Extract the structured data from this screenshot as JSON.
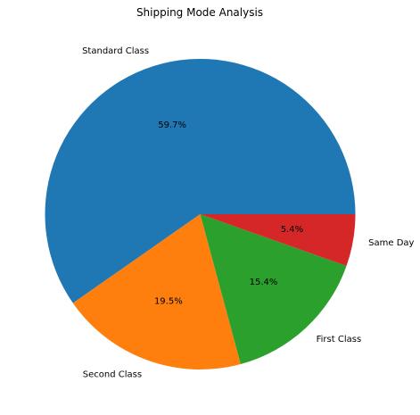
{
  "chart_data": {
    "type": "pie",
    "title": "Shipping Mode Analysis",
    "categories": [
      "Standard Class",
      "Second Class",
      "First Class",
      "Same Day"
    ],
    "values": [
      59.7,
      19.5,
      15.4,
      5.4
    ],
    "percent_labels": [
      "59.7%",
      "19.5%",
      "15.4%",
      "5.4%"
    ],
    "colors": [
      "#1f77b4",
      "#ff7f0e",
      "#2ca02c",
      "#d62728"
    ],
    "start_angle_deg": 0,
    "direction": "counterclockwise"
  }
}
